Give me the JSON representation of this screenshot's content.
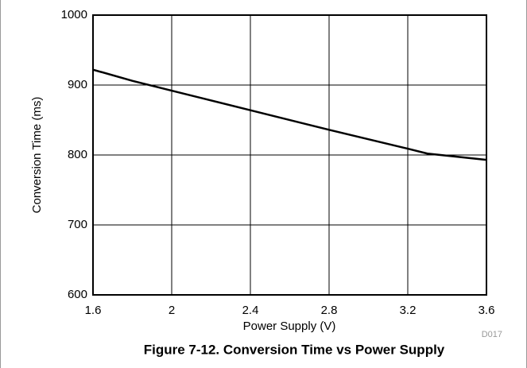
{
  "chart_data": {
    "type": "line",
    "title": "Figure 7-12. Conversion Time vs Power Supply",
    "x_label": "Power Supply (V)",
    "y_label": "Conversion Time (ms)",
    "note": "D017",
    "x": [
      1.6,
      1.8,
      2.0,
      2.4,
      2.8,
      3.2,
      3.3,
      3.6
    ],
    "series": [
      {
        "name": "Conversion Time",
        "color": "#000000",
        "values": [
          922,
          906,
          892,
          864,
          836,
          809,
          802,
          793
        ]
      }
    ],
    "xlim": [
      1.6,
      3.6
    ],
    "xticks": [
      1.6,
      2,
      2.4,
      2.8,
      3.2,
      3.6
    ],
    "ylim": [
      600,
      1000
    ],
    "yticks": [
      600,
      700,
      800,
      900,
      1000
    ],
    "grid": true
  }
}
